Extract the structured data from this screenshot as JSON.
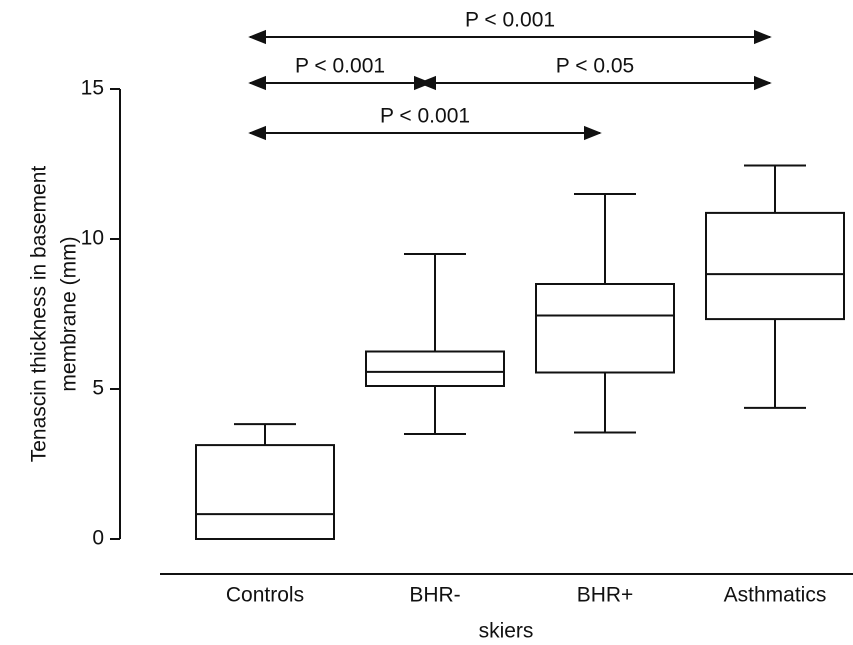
{
  "chart_data": {
    "type": "box",
    "categories": [
      "Controls",
      "BHR-",
      "BHR+",
      "Asthmatics"
    ],
    "min": [
      0,
      3.5,
      3.55,
      4.37
    ],
    "q1": [
      0,
      5.1,
      5.55,
      7.33
    ],
    "median": [
      0.83,
      5.57,
      7.45,
      8.83
    ],
    "q3": [
      3.13,
      6.25,
      8.5,
      10.87
    ],
    "max": [
      3.83,
      9.5,
      11.5,
      12.45
    ],
    "ylim": [
      0,
      15
    ],
    "yticks": [
      0,
      5,
      10,
      15
    ],
    "ylabel": [
      "Tenascin thickness in basement",
      "membrane (mm)"
    ],
    "xlabel": "skiers",
    "annotations": [
      "P < 0.001",
      "P < 0.001",
      "P < 0.05",
      "P < 0.001"
    ],
    "color": "#111111"
  }
}
